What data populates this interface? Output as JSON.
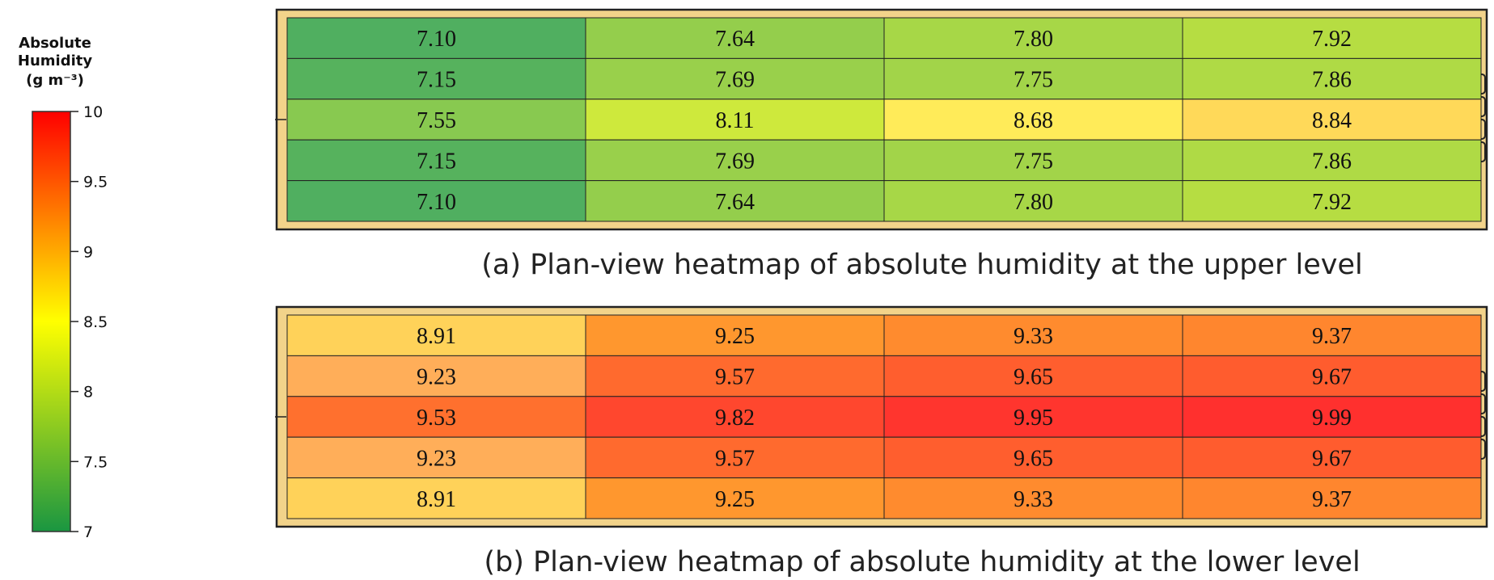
{
  "chart_data": {
    "colorbar": {
      "title_lines": [
        "Absolute",
        "Humidity"
      ],
      "unit": "(g m⁻³)",
      "range": [
        7,
        10
      ],
      "ticks": [
        "10",
        "9.5",
        "9",
        "8.5",
        "8",
        "7.5",
        "7"
      ],
      "tick_values": [
        10,
        9.5,
        9,
        8.5,
        8,
        7.5,
        7
      ],
      "colors": [
        "#1a9641",
        "#ffff00",
        "#ff0000"
      ]
    },
    "heatmaps": [
      {
        "type": "heatmap",
        "caption": "(a) Plan-view heatmap of absolute humidity at the upper level",
        "rows": [
          [
            "7.10",
            "7.64",
            "7.80",
            "7.92"
          ],
          [
            "7.15",
            "7.69",
            "7.75",
            "7.86"
          ],
          [
            "7.55",
            "8.11",
            "8.68",
            "8.84"
          ],
          [
            "7.15",
            "7.69",
            "7.75",
            "7.86"
          ],
          [
            "7.10",
            "7.64",
            "7.80",
            "7.92"
          ]
        ]
      },
      {
        "type": "heatmap",
        "caption": "(b) Plan-view heatmap of absolute humidity at the lower level",
        "rows": [
          [
            "8.91",
            "9.25",
            "9.33",
            "9.37"
          ],
          [
            "9.23",
            "9.57",
            "9.65",
            "9.67"
          ],
          [
            "9.53",
            "9.82",
            "9.95",
            "9.99"
          ],
          [
            "9.23",
            "9.57",
            "9.65",
            "9.67"
          ],
          [
            "8.91",
            "9.25",
            "9.33",
            "9.37"
          ]
        ]
      }
    ],
    "frame_color": "#f2d38a"
  }
}
